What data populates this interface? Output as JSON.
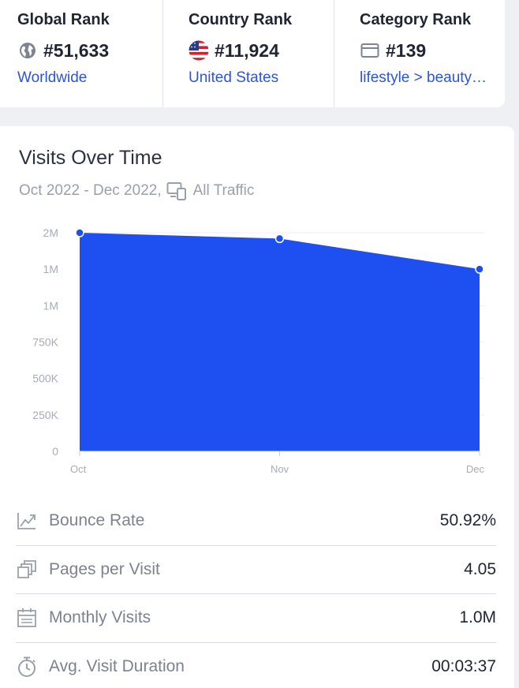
{
  "ranks": {
    "global": {
      "title": "Global Rank",
      "value": "#51,633",
      "link": "Worldwide",
      "icon": "globe-icon"
    },
    "country": {
      "title": "Country Rank",
      "value": "#11,924",
      "link": "United States",
      "icon": "us-flag-icon"
    },
    "category": {
      "title": "Category Rank",
      "value": "#139",
      "link": "lifestyle > beauty…",
      "icon": "category-icon"
    }
  },
  "visits": {
    "title": "Visits Over Time",
    "period": "Oct 2022 - Dec 2022,",
    "traffic": "All Traffic",
    "icon": "devices-icon"
  },
  "chart_data": {
    "type": "area",
    "categories": [
      "Oct",
      "Nov",
      "Dec"
    ],
    "series": [
      {
        "values": [
          1500000,
          1460000,
          1250000
        ]
      }
    ],
    "ytick_labels": [
      "0",
      "250K",
      "500K",
      "750K",
      "1M",
      "1M",
      "2M"
    ],
    "ylim": [
      0,
      1500000
    ],
    "color": "#1e4ff0",
    "grid": true
  },
  "metrics": [
    {
      "label": "Bounce Rate",
      "value": "50.92%",
      "icon": "bounce-rate-icon"
    },
    {
      "label": "Pages per Visit",
      "value": "4.05",
      "icon": "pages-icon"
    },
    {
      "label": "Monthly Visits",
      "value": "1.0M",
      "icon": "calendar-icon"
    },
    {
      "label": "Avg. Visit Duration",
      "value": "00:03:37",
      "icon": "stopwatch-icon"
    }
  ],
  "colors": {
    "link": "#2c55d7",
    "accent": "#1e4ff0",
    "muted": "#9aa0ab"
  }
}
